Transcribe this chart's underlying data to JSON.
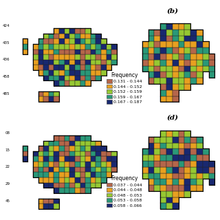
{
  "label_b": "(b)",
  "label_d": "(d)",
  "legend1_title": "Frequency",
  "legend1_items": [
    {
      "label": "0.131 - 0.144",
      "color": "#B5664A"
    },
    {
      "label": "0.144 - 0.152",
      "color": "#E8A020"
    },
    {
      "label": "0.152 - 0.159",
      "color": "#96C832"
    },
    {
      "label": "0.159 - 0.167",
      "color": "#2A9878"
    },
    {
      "label": "0.167 - 0.187",
      "color": "#182870"
    }
  ],
  "legend2_title": "Frequency",
  "legend2_items": [
    {
      "label": "0.037 - 0.044",
      "color": "#B5664A"
    },
    {
      "label": "0.044 - 0.048",
      "color": "#E8A020"
    },
    {
      "label": "0.048 - 0.053",
      "color": "#96C832"
    },
    {
      "label": "0.053 - 0.058",
      "color": "#2A9878"
    },
    {
      "label": "0.058 - 0.066",
      "color": "#182870"
    }
  ],
  "left_labels_top": [
    "424",
    "435",
    "436",
    "458",
    "485"
  ],
  "left_labels_bottom": [
    "08",
    "15",
    "22",
    "29",
    "45"
  ],
  "fig_bg": "#FFFFFF"
}
